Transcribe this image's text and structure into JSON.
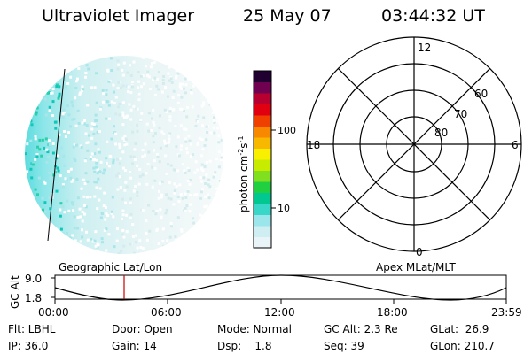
{
  "header": {
    "title": "Ultraviolet Imager",
    "date": "25 May 07",
    "time": "03:44:32 UT"
  },
  "colorbar": {
    "label": "photon cm",
    "label_sup1": "-2",
    "label_mid": "s",
    "label_sup2": "-1",
    "ticks": [
      "100",
      "10"
    ],
    "colors": [
      "#e8f4f8",
      "#cfeef2",
      "#9ae6ea",
      "#39d7c8",
      "#00c890",
      "#20d040",
      "#80e020",
      "#c8ec00",
      "#f8f000",
      "#f8b800",
      "#f88800",
      "#f04000",
      "#e00010",
      "#b80030",
      "#700050",
      "#200030"
    ]
  },
  "polar": {
    "mlt_labels": [
      "12",
      "18",
      "6",
      "0"
    ],
    "lat_labels": [
      "60",
      "70",
      "80"
    ]
  },
  "timeline": {
    "ylabel": "GC Alt",
    "y_top": "9.0",
    "y_bottom": "1.8",
    "left_caption": "Geographic Lat/Lon",
    "right_caption": "Apex MLat/MLT",
    "x_ticks": [
      "00:00",
      "06:00",
      "12:00",
      "18:00",
      "23:59"
    ],
    "marker_color": "#cc0000"
  },
  "status": {
    "flt": "Flt: LBHL",
    "door": "Door: Open",
    "mode": "Mode: Normal",
    "gcalt": "GC Alt: 2.3 Re",
    "glat": "GLat:  26.9",
    "ip": "IP: 36.0",
    "gain": "Gain: 14",
    "dsp": "Dsp:    1.8",
    "seq": "Seq: 39",
    "glon": "GLon: 210.7"
  }
}
